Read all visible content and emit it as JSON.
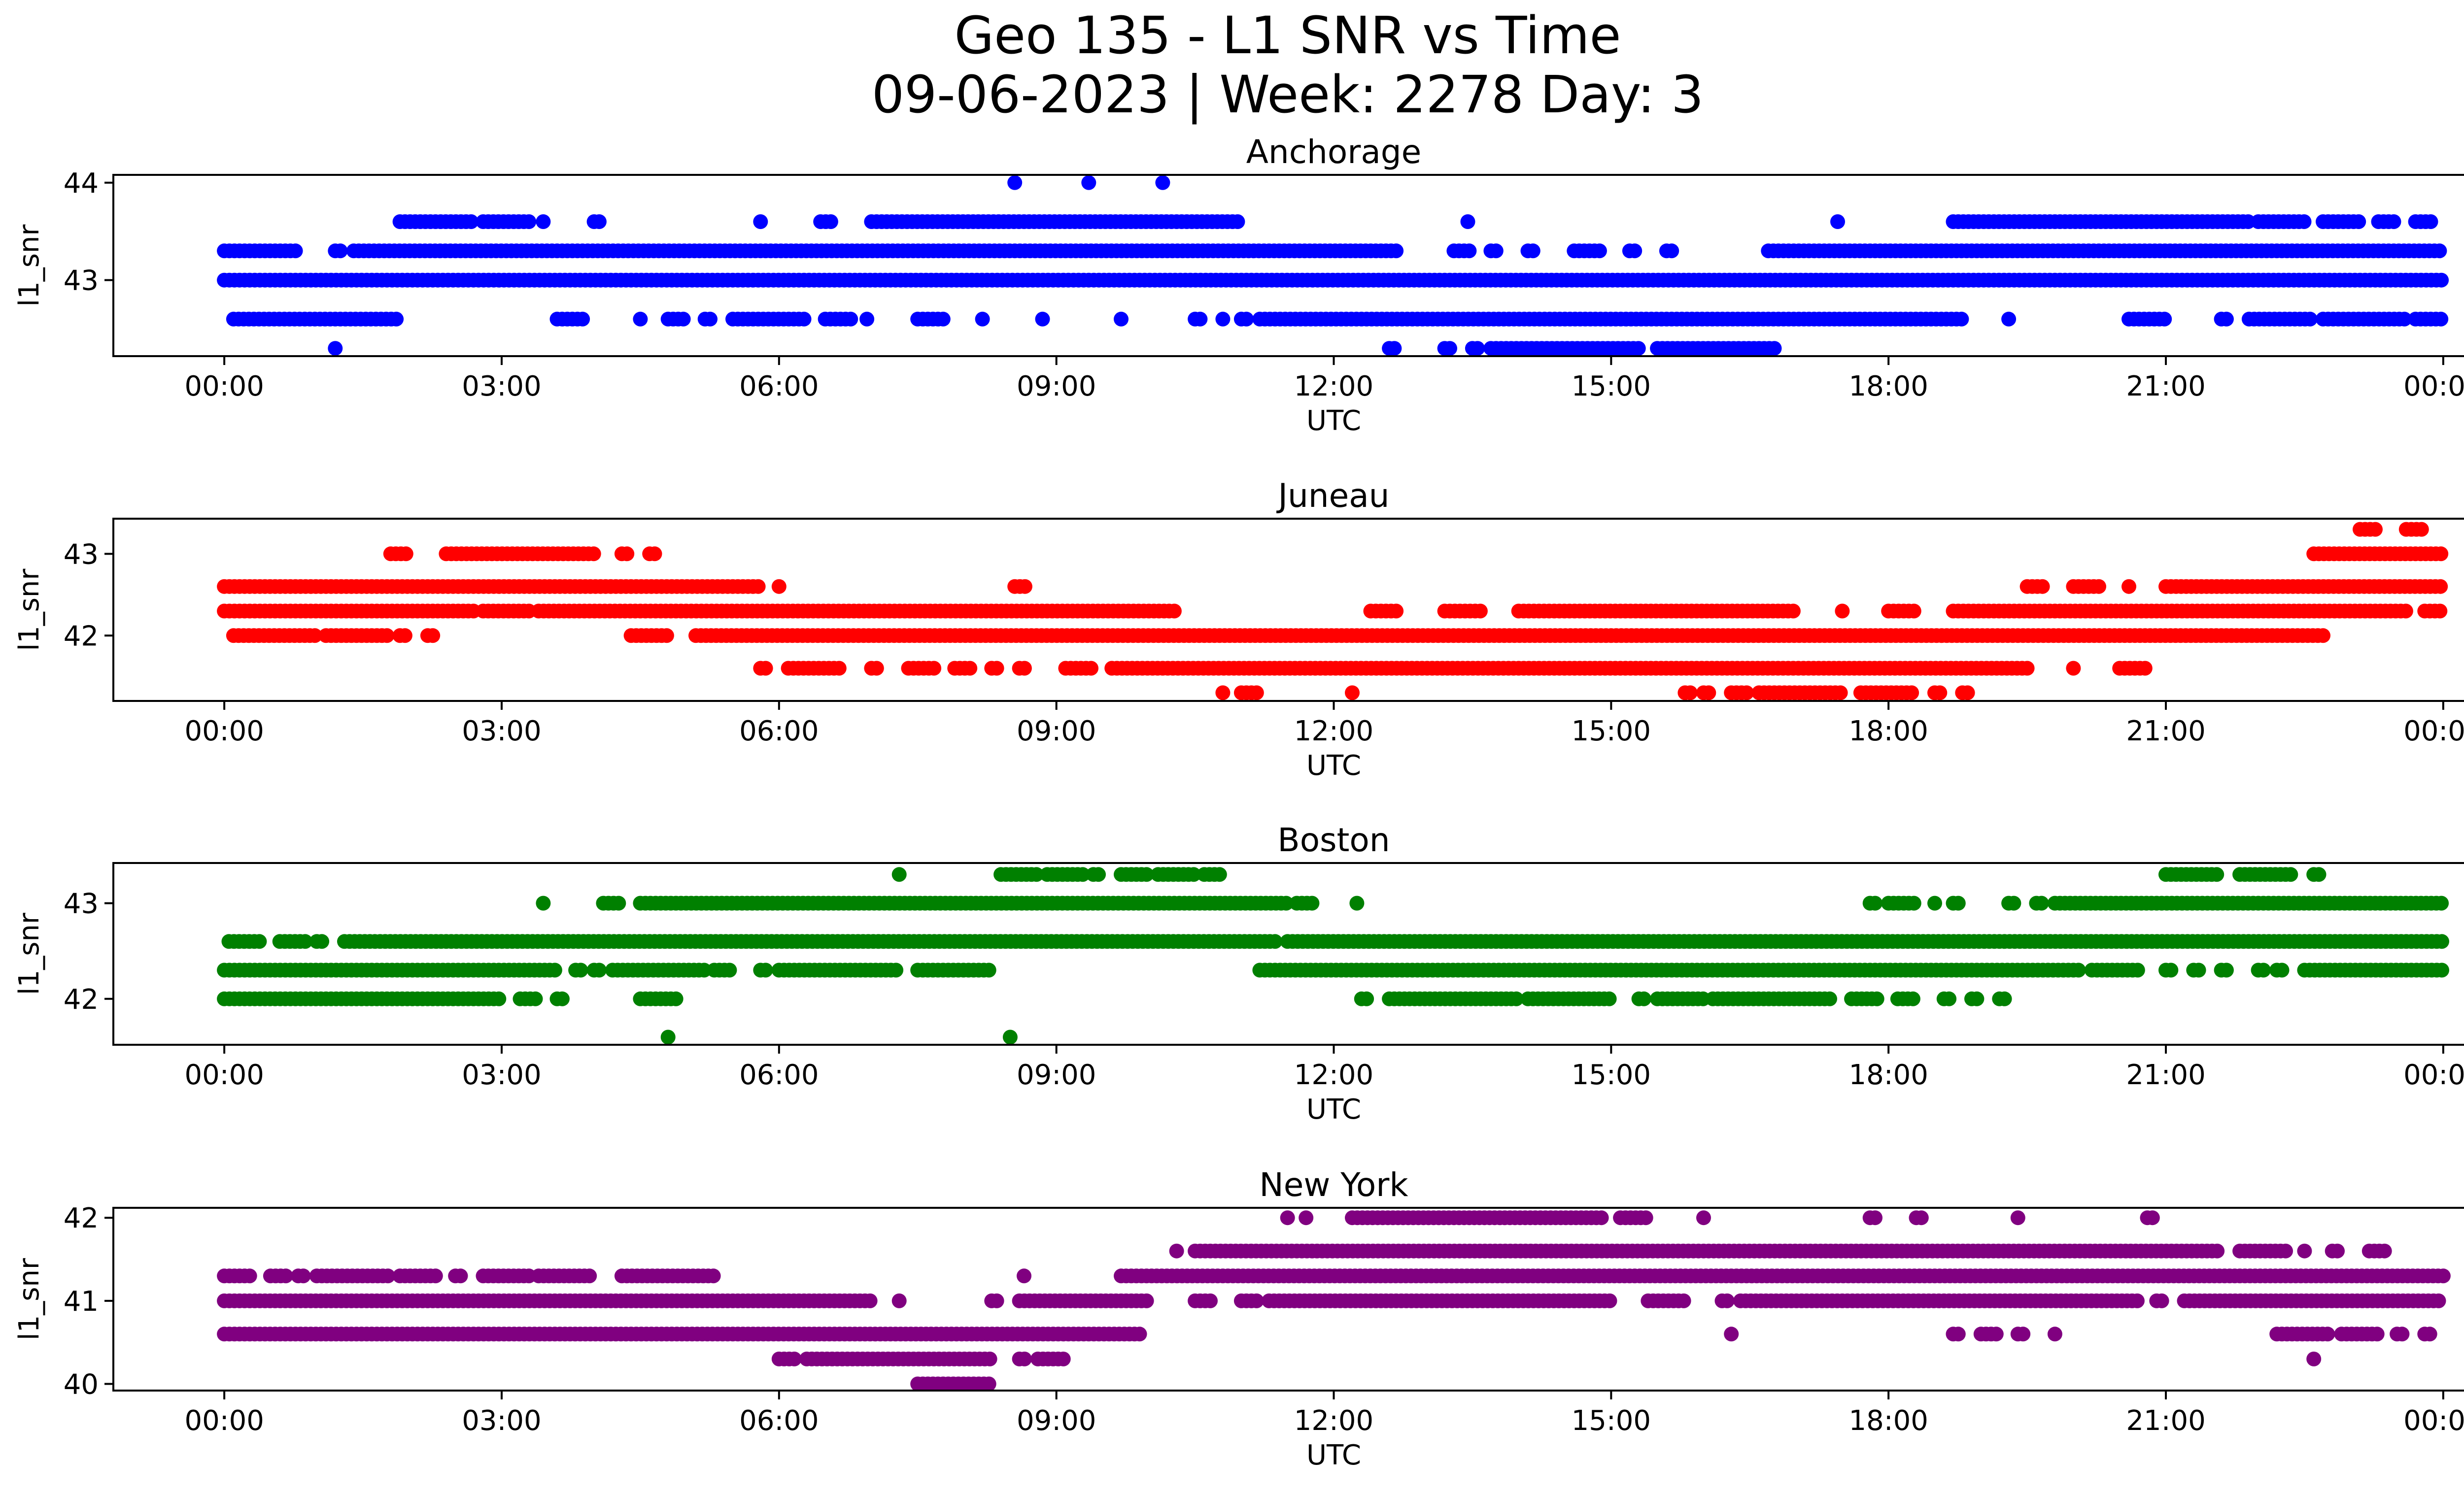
{
  "title_lines": [
    "Geo 135 - L1 SNR vs Time",
    "09-06-2023 | Week: 2278 Day: 3"
  ],
  "chart_data": [
    {
      "type": "scatter",
      "title": "Anchorage",
      "xlabel": "UTC",
      "ylabel": "l1_snr",
      "color": "#0000ff",
      "x_ticks": [
        "00:00",
        "03:00",
        "06:00",
        "09:00",
        "12:00",
        "15:00",
        "18:00",
        "21:00",
        "00:00"
      ],
      "y_ticks": [
        43,
        44
      ],
      "xlim_hours": [
        -1.2,
        25.2
      ],
      "ylim": [
        42.22,
        44.08
      ],
      "levels": [
        {
          "snr": 44.0,
          "segments": [
            [
              8.55,
              8.6
            ],
            [
              9.35,
              9.4
            ],
            [
              10.15,
              10.2
            ]
          ]
        },
        {
          "snr": 43.6,
          "segments": [
            [
              1.9,
              2.7
            ],
            [
              2.8,
              3.3
            ],
            [
              3.45,
              3.5
            ],
            [
              4.0,
              4.1
            ],
            [
              5.8,
              5.85
            ],
            [
              6.45,
              6.6
            ],
            [
              7.0,
              11.0
            ],
            [
              13.45,
              13.5
            ],
            [
              17.45,
              17.5
            ],
            [
              18.7,
              21.9
            ],
            [
              22.0,
              22.5
            ],
            [
              22.7,
              23.1
            ],
            [
              23.3,
              23.5
            ],
            [
              23.7,
              23.9
            ]
          ]
        },
        {
          "snr": 43.3,
          "segments": [
            [
              0.0,
              0.8
            ],
            [
              1.2,
              1.3
            ],
            [
              1.4,
              12.7
            ],
            [
              13.3,
              13.5
            ],
            [
              13.7,
              13.8
            ],
            [
              14.1,
              14.2
            ],
            [
              14.6,
              14.9
            ],
            [
              15.2,
              15.3
            ],
            [
              15.6,
              15.7
            ],
            [
              16.7,
              24.0
            ]
          ]
        },
        {
          "snr": 43.0,
          "segments": [
            [
              0.0,
              24.0
            ]
          ]
        },
        {
          "snr": 42.6,
          "segments": [
            [
              0.1,
              1.9
            ],
            [
              3.6,
              3.9
            ],
            [
              4.5,
              4.55
            ],
            [
              4.8,
              5.0
            ],
            [
              5.2,
              5.3
            ],
            [
              5.5,
              6.3
            ],
            [
              6.5,
              6.8
            ],
            [
              6.95,
              7.0
            ],
            [
              7.5,
              7.8
            ],
            [
              8.2,
              8.25
            ],
            [
              8.85,
              8.9
            ],
            [
              9.7,
              9.75
            ],
            [
              10.5,
              10.6
            ],
            [
              10.8,
              10.85
            ],
            [
              11.0,
              11.1
            ],
            [
              11.2,
              18.8
            ],
            [
              19.3,
              19.35
            ],
            [
              20.6,
              21.0
            ],
            [
              21.6,
              21.7
            ],
            [
              21.9,
              22.6
            ],
            [
              22.7,
              23.6
            ],
            [
              23.7,
              24.0
            ]
          ]
        },
        {
          "snr": 42.3,
          "segments": [
            [
              1.2,
              1.25
            ],
            [
              12.6,
              12.7
            ],
            [
              13.2,
              13.3
            ],
            [
              13.5,
              13.6
            ],
            [
              13.7,
              15.3
            ],
            [
              15.5,
              16.8
            ]
          ]
        }
      ]
    },
    {
      "type": "scatter",
      "title": "Juneau",
      "xlabel": "UTC",
      "ylabel": "l1_snr",
      "color": "#ff0000",
      "x_ticks": [
        "00:00",
        "03:00",
        "06:00",
        "09:00",
        "12:00",
        "15:00",
        "18:00",
        "21:00",
        "00:00"
      ],
      "y_ticks": [
        42,
        43
      ],
      "xlim_hours": [
        -1.2,
        25.2
      ],
      "ylim": [
        41.2,
        43.43
      ],
      "levels": [
        {
          "snr": 43.3,
          "segments": [
            [
              23.1,
              23.3
            ],
            [
              23.6,
              23.8
            ]
          ]
        },
        {
          "snr": 43.0,
          "segments": [
            [
              1.8,
              2.0
            ],
            [
              2.4,
              4.0
            ],
            [
              4.3,
              4.4
            ],
            [
              4.6,
              4.7
            ],
            [
              22.6,
              24.0
            ]
          ]
        },
        {
          "snr": 42.6,
          "segments": [
            [
              0.0,
              5.8
            ],
            [
              6.0,
              6.05
            ],
            [
              8.55,
              8.7
            ],
            [
              19.5,
              19.7
            ],
            [
              20.0,
              20.3
            ],
            [
              20.6,
              20.65
            ],
            [
              21.0,
              24.0
            ]
          ]
        },
        {
          "snr": 42.3,
          "segments": [
            [
              0.0,
              2.7
            ],
            [
              2.8,
              3.3
            ],
            [
              3.4,
              10.3
            ],
            [
              12.4,
              12.7
            ],
            [
              13.2,
              13.6
            ],
            [
              14.0,
              17.0
            ],
            [
              17.5,
              17.55
            ],
            [
              18.0,
              18.3
            ],
            [
              18.7,
              23.6
            ],
            [
              23.8,
              24.0
            ]
          ]
        },
        {
          "snr": 42.0,
          "segments": [
            [
              0.1,
              1.0
            ],
            [
              1.1,
              1.8
            ],
            [
              1.9,
              2.0
            ],
            [
              2.2,
              2.3
            ],
            [
              4.4,
              4.8
            ],
            [
              5.1,
              22.7
            ]
          ]
        },
        {
          "snr": 41.6,
          "segments": [
            [
              5.8,
              5.9
            ],
            [
              6.1,
              6.7
            ],
            [
              7.0,
              7.1
            ],
            [
              7.4,
              7.7
            ],
            [
              7.9,
              8.1
            ],
            [
              8.3,
              8.4
            ],
            [
              8.6,
              8.7
            ],
            [
              9.1,
              9.4
            ],
            [
              9.6,
              19.5
            ],
            [
              20.0,
              20.05
            ],
            [
              20.5,
              20.8
            ]
          ]
        },
        {
          "snr": 41.3,
          "segments": [
            [
              10.8,
              10.85
            ],
            [
              11.0,
              11.2
            ],
            [
              12.2,
              12.25
            ],
            [
              15.8,
              15.9
            ],
            [
              16.0,
              16.1
            ],
            [
              16.3,
              16.5
            ],
            [
              16.6,
              17.5
            ],
            [
              17.7,
              18.3
            ],
            [
              18.5,
              18.6
            ],
            [
              18.8,
              18.9
            ]
          ]
        }
      ]
    },
    {
      "type": "scatter",
      "title": "Boston",
      "xlabel": "UTC",
      "ylabel": "l1_snr",
      "color": "#008000",
      "x_ticks": [
        "00:00",
        "03:00",
        "06:00",
        "09:00",
        "12:00",
        "15:00",
        "18:00",
        "21:00",
        "00:00"
      ],
      "y_ticks": [
        42,
        43
      ],
      "xlim_hours": [
        -1.2,
        25.2
      ],
      "ylim": [
        41.52,
        43.42
      ],
      "levels": [
        {
          "snr": 43.3,
          "segments": [
            [
              7.3,
              7.35
            ],
            [
              8.4,
              8.8
            ],
            [
              8.9,
              9.3
            ],
            [
              9.4,
              9.5
            ],
            [
              9.7,
              10.0
            ],
            [
              10.1,
              10.5
            ],
            [
              10.6,
              10.8
            ],
            [
              21.0,
              21.6
            ],
            [
              21.8,
              22.4
            ],
            [
              22.6,
              22.7
            ]
          ]
        },
        {
          "snr": 43.0,
          "segments": [
            [
              3.45,
              3.5
            ],
            [
              4.1,
              4.3
            ],
            [
              4.5,
              11.5
            ],
            [
              11.6,
              11.8
            ],
            [
              12.25,
              12.3
            ],
            [
              17.8,
              17.9
            ],
            [
              18.0,
              18.3
            ],
            [
              18.5,
              18.55
            ],
            [
              18.7,
              18.8
            ],
            [
              19.3,
              19.4
            ],
            [
              19.6,
              19.7
            ],
            [
              19.8,
              24.0
            ]
          ]
        },
        {
          "snr": 42.6,
          "segments": [
            [
              0.05,
              0.4
            ],
            [
              0.6,
              0.9
            ],
            [
              1.0,
              1.1
            ],
            [
              1.3,
              11.4
            ],
            [
              11.5,
              24.0
            ]
          ]
        },
        {
          "snr": 42.3,
          "segments": [
            [
              0.0,
              3.6
            ],
            [
              3.8,
              3.9
            ],
            [
              4.0,
              4.1
            ],
            [
              4.2,
              5.2
            ],
            [
              5.3,
              5.5
            ],
            [
              5.8,
              5.9
            ],
            [
              6.0,
              7.3
            ],
            [
              7.5,
              8.3
            ],
            [
              11.2,
              20.1
            ],
            [
              20.2,
              20.7
            ],
            [
              21.0,
              21.1
            ],
            [
              21.3,
              21.4
            ],
            [
              21.6,
              21.7
            ],
            [
              22.0,
              22.1
            ],
            [
              22.2,
              22.3
            ],
            [
              22.5,
              24.0
            ]
          ]
        },
        {
          "snr": 42.0,
          "segments": [
            [
              0.0,
              3.0
            ],
            [
              3.2,
              3.4
            ],
            [
              3.6,
              3.7
            ],
            [
              4.5,
              4.9
            ],
            [
              12.3,
              12.4
            ],
            [
              12.6,
              14.0
            ],
            [
              14.1,
              15.0
            ],
            [
              15.3,
              15.4
            ],
            [
              15.5,
              16.0
            ],
            [
              16.1,
              17.4
            ],
            [
              17.6,
              17.9
            ],
            [
              18.1,
              18.3
            ],
            [
              18.6,
              18.7
            ],
            [
              18.9,
              19.0
            ],
            [
              19.2,
              19.3
            ]
          ]
        },
        {
          "snr": 41.6,
          "segments": [
            [
              4.8,
              4.85
            ],
            [
              8.5,
              8.55
            ]
          ]
        }
      ]
    },
    {
      "type": "scatter",
      "title": "New York",
      "xlabel": "UTC",
      "ylabel": "l1_snr",
      "color": "#800080",
      "x_ticks": [
        "00:00",
        "03:00",
        "06:00",
        "09:00",
        "12:00",
        "15:00",
        "18:00",
        "21:00",
        "00:00"
      ],
      "y_ticks": [
        40,
        41,
        42
      ],
      "xlim_hours": [
        -1.2,
        25.2
      ],
      "ylim": [
        39.92,
        42.12
      ],
      "levels": [
        {
          "snr": 42.0,
          "segments": [
            [
              11.5,
              11.55
            ],
            [
              11.7,
              11.75
            ],
            [
              12.2,
              14.9
            ],
            [
              15.1,
              15.4
            ],
            [
              16.0,
              16.05
            ],
            [
              17.8,
              17.9
            ],
            [
              18.3,
              18.4
            ],
            [
              19.4,
              19.45
            ],
            [
              20.8,
              20.9
            ]
          ]
        },
        {
          "snr": 41.6,
          "segments": [
            [
              10.3,
              10.35
            ],
            [
              10.5,
              21.6
            ],
            [
              21.8,
              22.3
            ],
            [
              22.5,
              22.55
            ],
            [
              22.8,
              22.9
            ],
            [
              23.2,
              23.4
            ]
          ]
        },
        {
          "snr": 41.3,
          "segments": [
            [
              0.0,
              0.3
            ],
            [
              0.5,
              0.7
            ],
            [
              0.8,
              0.9
            ],
            [
              1.0,
              1.8
            ],
            [
              1.9,
              2.3
            ],
            [
              2.5,
              2.6
            ],
            [
              2.8,
              3.3
            ],
            [
              3.4,
              4.0
            ],
            [
              4.3,
              5.3
            ],
            [
              8.65,
              8.7
            ],
            [
              9.7,
              24.0
            ]
          ]
        },
        {
          "snr": 41.0,
          "segments": [
            [
              0.0,
              7.0
            ],
            [
              7.3,
              7.35
            ],
            [
              8.3,
              8.4
            ],
            [
              8.6,
              10.0
            ],
            [
              10.5,
              10.7
            ],
            [
              11.0,
              11.2
            ],
            [
              11.3,
              15.0
            ],
            [
              15.4,
              15.8
            ],
            [
              16.2,
              16.3
            ],
            [
              16.4,
              20.7
            ],
            [
              20.9,
              21.0
            ],
            [
              21.2,
              24.0
            ]
          ]
        },
        {
          "snr": 40.6,
          "segments": [
            [
              0.0,
              9.9
            ],
            [
              16.3,
              16.35
            ],
            [
              18.7,
              18.8
            ],
            [
              19.0,
              19.2
            ],
            [
              19.4,
              19.5
            ],
            [
              19.8,
              19.85
            ],
            [
              22.2,
              22.8
            ],
            [
              22.9,
              23.3
            ],
            [
              23.5,
              23.6
            ],
            [
              23.8,
              23.9
            ]
          ]
        },
        {
          "snr": 40.3,
          "segments": [
            [
              6.0,
              6.2
            ],
            [
              6.3,
              8.3
            ],
            [
              8.6,
              8.7
            ],
            [
              8.8,
              9.1
            ],
            [
              22.6,
              22.65
            ]
          ]
        },
        {
          "snr": 40.0,
          "segments": [
            [
              7.5,
              8.3
            ]
          ]
        }
      ]
    }
  ]
}
